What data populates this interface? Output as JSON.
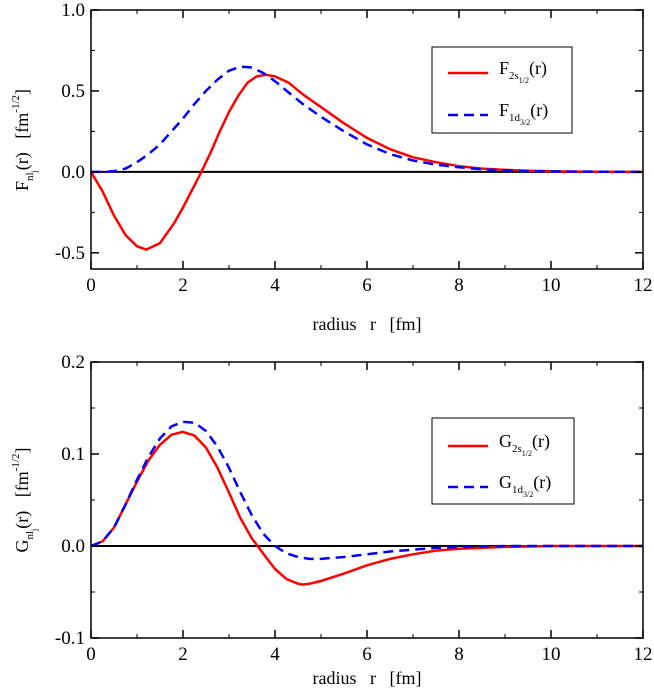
{
  "chart_data": [
    {
      "type": "line",
      "xlabel": "radius   r   [fm]",
      "ylabel": {
        "main": "F",
        "sub1": "nl",
        "sub2": "j",
        "rest": "(r)   [fm",
        "sup": "-1/2",
        "close": "]"
      },
      "xlim": [
        0,
        12
      ],
      "ylim": [
        -0.6,
        1.0
      ],
      "xticks": [
        "0",
        "2",
        "4",
        "6",
        "8",
        "10",
        "12"
      ],
      "yticks": [
        "-0.5",
        "0.0",
        "0.5",
        "1.0"
      ],
      "grid": false,
      "legend_position": "top-right",
      "zero_line": true,
      "series": [
        {
          "name": "F2s1/2(r)",
          "label": {
            "main": "F",
            "sub": "2s",
            "subsub": "1/2",
            "rest": "(r)"
          },
          "color": "#ff0000",
          "dash": "solid",
          "x": [
            0,
            0.25,
            0.5,
            0.75,
            1.0,
            1.2,
            1.5,
            1.8,
            2.0,
            2.2,
            2.4,
            2.6,
            2.8,
            3.0,
            3.2,
            3.4,
            3.6,
            3.8,
            4.0,
            4.3,
            4.6,
            5.0,
            5.5,
            6.0,
            6.5,
            7.0,
            7.5,
            8.0,
            8.5,
            9.0,
            9.5,
            10.0,
            10.5,
            11.0,
            12.0
          ],
          "y": [
            0,
            -0.12,
            -0.27,
            -0.39,
            -0.46,
            -0.48,
            -0.44,
            -0.32,
            -0.22,
            -0.11,
            0.0,
            0.12,
            0.25,
            0.37,
            0.47,
            0.55,
            0.59,
            0.6,
            0.59,
            0.55,
            0.48,
            0.4,
            0.3,
            0.21,
            0.14,
            0.09,
            0.06,
            0.035,
            0.02,
            0.012,
            0.007,
            0.004,
            0.002,
            0.001,
            0.0
          ]
        },
        {
          "name": "F1d3/2(r)",
          "label": {
            "main": "F",
            "sub": "1d",
            "subsub": "3/2",
            "rest": "(r)"
          },
          "color": "#0000ff",
          "dash": "dashed",
          "x": [
            0,
            0.3,
            0.5,
            0.75,
            1.0,
            1.25,
            1.5,
            1.75,
            2.0,
            2.25,
            2.5,
            2.75,
            3.0,
            3.25,
            3.5,
            3.75,
            4.0,
            4.3,
            4.6,
            5.0,
            5.5,
            6.0,
            6.5,
            7.0,
            7.5,
            8.0,
            8.5,
            9.0,
            9.5,
            10.0,
            10.5,
            11.0,
            12.0
          ],
          "y": [
            0,
            0.0,
            0.005,
            0.02,
            0.06,
            0.11,
            0.17,
            0.25,
            0.33,
            0.42,
            0.5,
            0.57,
            0.625,
            0.65,
            0.645,
            0.61,
            0.56,
            0.49,
            0.42,
            0.34,
            0.25,
            0.17,
            0.11,
            0.07,
            0.045,
            0.028,
            0.016,
            0.009,
            0.005,
            0.003,
            0.002,
            0.001,
            0.0
          ]
        }
      ]
    },
    {
      "type": "line",
      "xlabel": "radius   r   [fm]",
      "ylabel": {
        "main": "G",
        "sub1": "nl",
        "sub2": "j",
        "rest": "(r)   [fm",
        "sup": "-1/2",
        "close": "]"
      },
      "xlim": [
        0,
        12
      ],
      "ylim": [
        -0.1,
        0.2
      ],
      "xticks": [
        "0",
        "2",
        "4",
        "6",
        "8",
        "10",
        "12"
      ],
      "yticks": [
        "-0.1",
        "0.0",
        "0.1",
        "0.2"
      ],
      "grid": false,
      "legend_position": "top-right",
      "zero_line": true,
      "series": [
        {
          "name": "G2s1/2(r)",
          "label": {
            "main": "G",
            "sub": "2s",
            "subsub": "1/2",
            "rest": "(r)"
          },
          "color": "#ff0000",
          "dash": "solid",
          "x": [
            0,
            0.25,
            0.5,
            0.75,
            1.0,
            1.25,
            1.5,
            1.75,
            2.0,
            2.25,
            2.5,
            2.75,
            3.0,
            3.25,
            3.5,
            3.65,
            3.8,
            4.0,
            4.25,
            4.5,
            4.6,
            4.75,
            5.0,
            5.5,
            6.0,
            6.5,
            7.0,
            7.5,
            8.0,
            9.0,
            10.0,
            11.0,
            12.0
          ],
          "y": [
            0,
            0.005,
            0.02,
            0.045,
            0.07,
            0.093,
            0.11,
            0.121,
            0.124,
            0.12,
            0.107,
            0.085,
            0.058,
            0.03,
            0.008,
            -0.002,
            -0.012,
            -0.025,
            -0.036,
            -0.041,
            -0.042,
            -0.041,
            -0.038,
            -0.03,
            -0.021,
            -0.014,
            -0.009,
            -0.005,
            -0.003,
            -0.001,
            0.0,
            0.0,
            0.0
          ]
        },
        {
          "name": "G1d3/2(r)",
          "label": {
            "main": "G",
            "sub": "1d",
            "subsub": "3/2",
            "rest": "(r)"
          },
          "color": "#0000ff",
          "dash": "dashed",
          "x": [
            0,
            0.25,
            0.5,
            0.75,
            1.0,
            1.25,
            1.5,
            1.75,
            2.0,
            2.25,
            2.5,
            2.75,
            3.0,
            3.25,
            3.5,
            3.75,
            4.0,
            4.25,
            4.5,
            4.75,
            5.0,
            5.5,
            6.0,
            6.5,
            7.0,
            7.5,
            8.0,
            9.0,
            10.0,
            11.0,
            12.0
          ],
          "y": [
            0,
            0.005,
            0.02,
            0.045,
            0.072,
            0.097,
            0.117,
            0.13,
            0.135,
            0.134,
            0.125,
            0.108,
            0.085,
            0.058,
            0.033,
            0.013,
            0.0,
            -0.008,
            -0.012,
            -0.014,
            -0.014,
            -0.012,
            -0.009,
            -0.006,
            -0.004,
            -0.002,
            -0.001,
            0.0,
            0.0,
            0.0,
            0.0
          ]
        }
      ]
    }
  ]
}
